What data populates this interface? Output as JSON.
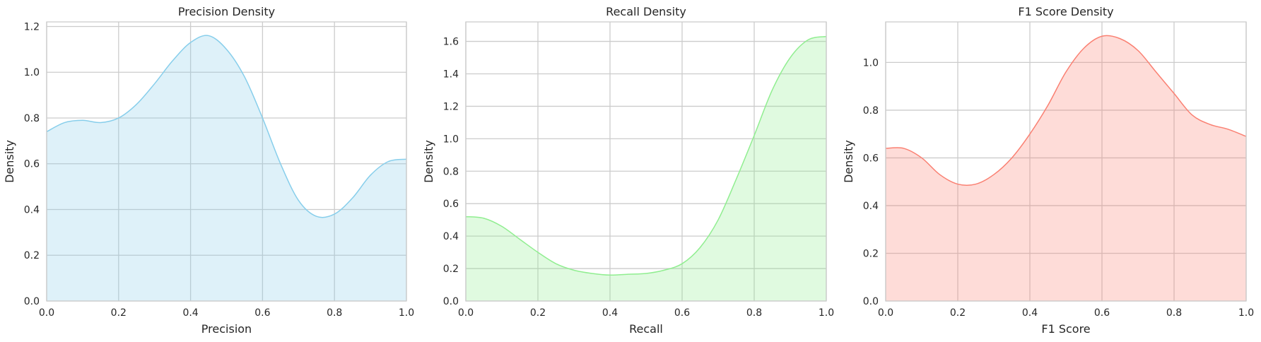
{
  "chart_data": [
    {
      "type": "area",
      "title": "Precision Density",
      "xlabel": "Precision",
      "ylabel": "Density",
      "xlim": [
        0.0,
        1.0
      ],
      "ylim": [
        0.0,
        1.22
      ],
      "xticks": [
        "0.0",
        "0.2",
        "0.4",
        "0.6",
        "0.8",
        "1.0"
      ],
      "yticks": [
        "0.0",
        "0.2",
        "0.4",
        "0.6",
        "0.8",
        "1.0",
        "1.2"
      ],
      "grid": true,
      "color": "#87CEEB",
      "series": [
        {
          "x": [
            0.0,
            0.05,
            0.1,
            0.15,
            0.2,
            0.25,
            0.3,
            0.35,
            0.4,
            0.45,
            0.5,
            0.55,
            0.6,
            0.65,
            0.7,
            0.75,
            0.8,
            0.85,
            0.9,
            0.95,
            1.0
          ],
          "y": [
            0.74,
            0.78,
            0.79,
            0.78,
            0.8,
            0.86,
            0.95,
            1.05,
            1.13,
            1.16,
            1.1,
            0.98,
            0.8,
            0.6,
            0.44,
            0.37,
            0.38,
            0.45,
            0.55,
            0.61,
            0.62
          ]
        }
      ]
    },
    {
      "type": "area",
      "title": "Recall Density",
      "xlabel": "Recall",
      "ylabel": "Density",
      "xlim": [
        0.0,
        1.0
      ],
      "ylim": [
        0.0,
        1.72
      ],
      "xticks": [
        "0.0",
        "0.2",
        "0.4",
        "0.6",
        "0.8",
        "1.0"
      ],
      "yticks": [
        "0.0",
        "0.2",
        "0.4",
        "0.6",
        "0.8",
        "1.0",
        "1.2",
        "1.4",
        "1.6"
      ],
      "grid": true,
      "color": "#90EE90",
      "series": [
        {
          "x": [
            0.0,
            0.05,
            0.1,
            0.15,
            0.2,
            0.25,
            0.3,
            0.35,
            0.4,
            0.45,
            0.5,
            0.55,
            0.6,
            0.65,
            0.7,
            0.75,
            0.8,
            0.85,
            0.9,
            0.95,
            1.0
          ],
          "y": [
            0.52,
            0.51,
            0.46,
            0.38,
            0.3,
            0.23,
            0.19,
            0.17,
            0.16,
            0.165,
            0.17,
            0.19,
            0.23,
            0.33,
            0.5,
            0.75,
            1.02,
            1.3,
            1.5,
            1.61,
            1.63
          ]
        }
      ]
    },
    {
      "type": "area",
      "title": "F1 Score Density",
      "xlabel": "F1 Score",
      "ylabel": "Density",
      "xlim": [
        0.0,
        1.0
      ],
      "ylim": [
        0.0,
        1.17
      ],
      "xticks": [
        "0.0",
        "0.2",
        "0.4",
        "0.6",
        "0.8",
        "1.0"
      ],
      "yticks": [
        "0.0",
        "0.2",
        "0.4",
        "0.6",
        "0.8",
        "1.0"
      ],
      "grid": true,
      "color": "#FA8072",
      "series": [
        {
          "x": [
            0.0,
            0.05,
            0.1,
            0.15,
            0.2,
            0.25,
            0.3,
            0.35,
            0.4,
            0.45,
            0.5,
            0.55,
            0.6,
            0.65,
            0.7,
            0.75,
            0.8,
            0.85,
            0.9,
            0.95,
            1.0
          ],
          "y": [
            0.64,
            0.64,
            0.6,
            0.53,
            0.49,
            0.49,
            0.53,
            0.6,
            0.7,
            0.82,
            0.96,
            1.06,
            1.11,
            1.1,
            1.05,
            0.96,
            0.87,
            0.78,
            0.74,
            0.72,
            0.69
          ]
        }
      ]
    }
  ]
}
